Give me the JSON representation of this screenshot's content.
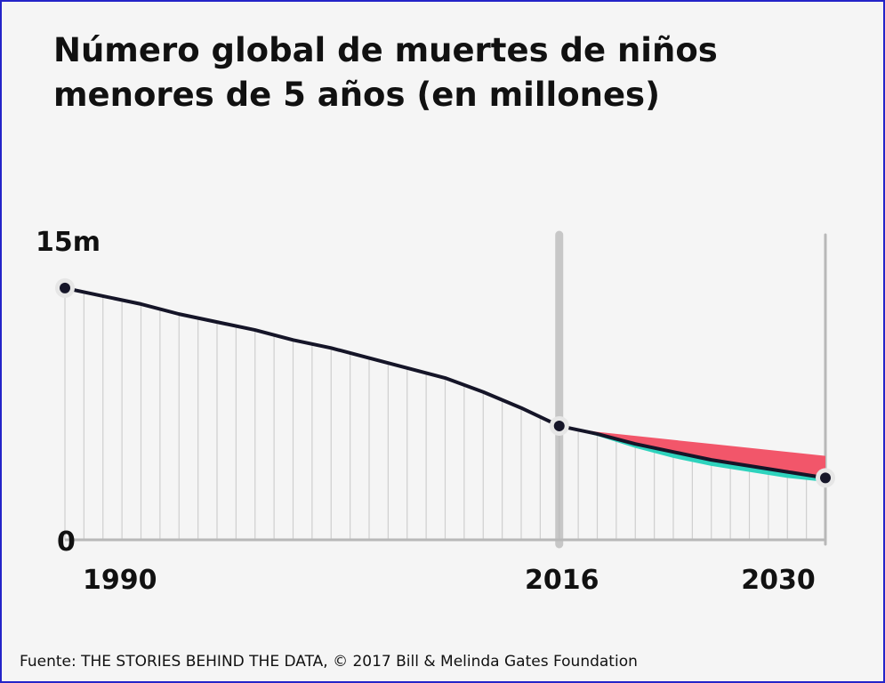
{
  "title": "Número global de muertes de niños menores de 5 años (en millones)",
  "source": "Fuente: THE STORIES BEHIND THE DATA, © 2017 Bill & Melinda Gates Foundation",
  "colors": {
    "line": "#151528",
    "upper_band": "#f2566a",
    "lower_band": "#2ed3bd",
    "grid": "#cfcfcf",
    "marker_line": "#b8b8b8"
  },
  "chart_data": {
    "type": "line",
    "title": "Número global de muertes de niños menores de 5 años (en millones)",
    "xlabel": "",
    "ylabel": "",
    "xlim": [
      1990,
      2030
    ],
    "ylim": [
      0,
      15
    ],
    "y_ticks": [
      {
        "value": 15,
        "label": "15m"
      },
      {
        "value": 0,
        "label": "0"
      }
    ],
    "x_ticks": [
      {
        "value": 1990,
        "label": "1990"
      },
      {
        "value": 2016,
        "label": "2016"
      },
      {
        "value": 2030,
        "label": "2030"
      }
    ],
    "reference_lines": [
      2016,
      2030
    ],
    "grid": "vertical year lines",
    "series": [
      {
        "x": [
          1990,
          1992,
          1994,
          1996,
          1998,
          2000,
          2002,
          2004,
          2006,
          2008,
          2010,
          2012,
          2014,
          2016
        ],
        "y": [
          12.6,
          12.2,
          11.8,
          11.3,
          10.9,
          10.5,
          10.0,
          9.6,
          9.1,
          8.6,
          8.1,
          7.4,
          6.6,
          5.7
        ]
      },
      {
        "x": [
          2016,
          2018,
          2020,
          2022,
          2024,
          2026,
          2028,
          2030
        ],
        "y": [
          5.7,
          5.3,
          4.8,
          4.4,
          4.0,
          3.7,
          3.4,
          3.1
        ]
      }
    ],
    "band": {
      "x": [
        2016,
        2018,
        2020,
        2022,
        2024,
        2026,
        2028,
        2030
      ],
      "upper": [
        5.7,
        5.4,
        5.2,
        5.0,
        4.8,
        4.6,
        4.4,
        4.2
      ],
      "lower": [
        5.7,
        5.2,
        4.6,
        4.1,
        3.7,
        3.4,
        3.1,
        2.9
      ]
    },
    "points": [
      {
        "x": 1990,
        "y": 12.6
      },
      {
        "x": 2016,
        "y": 5.7
      },
      {
        "x": 2030,
        "y": 3.1
      }
    ]
  }
}
